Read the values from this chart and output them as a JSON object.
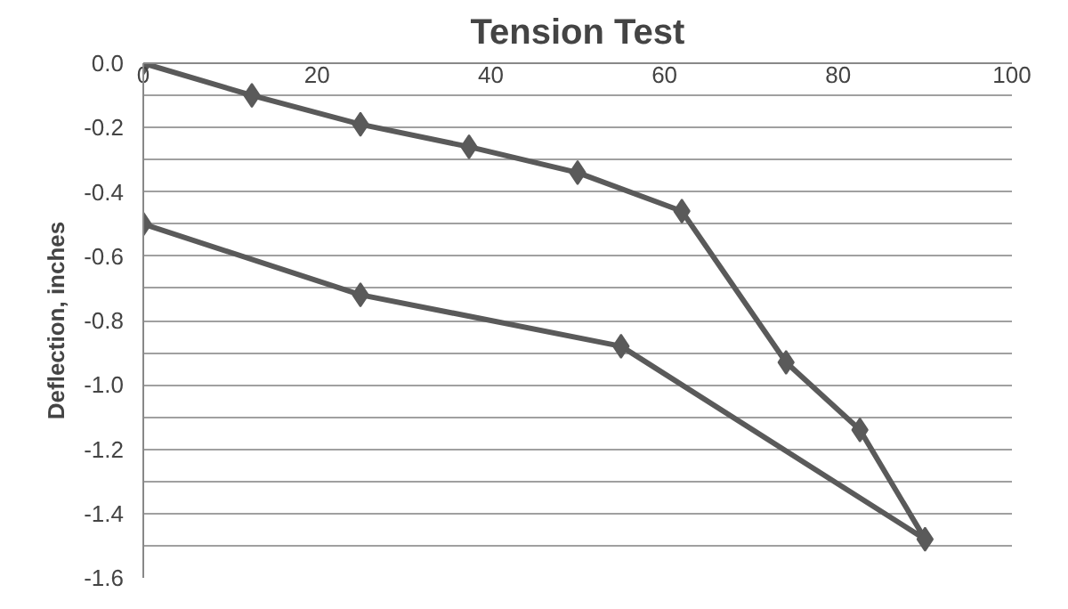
{
  "chart_data": {
    "type": "line",
    "title": "Tension Test",
    "ylabel": "Deflection, inches",
    "x": [
      0,
      12.5,
      25,
      37.5,
      50,
      62,
      74,
      82.5,
      90,
      55,
      25,
      0
    ],
    "series": [
      {
        "color": "#5a5a5a",
        "values": [
          0,
          -0.1,
          -0.19,
          -0.26,
          -0.34,
          -0.46,
          -0.93,
          -1.14,
          -1.48,
          -0.88,
          -0.72,
          -0.5
        ]
      }
    ],
    "xlim": [
      0,
      100
    ],
    "xticks": [
      0,
      20,
      40,
      60,
      80,
      100
    ],
    "ylim": [
      -1.6,
      0
    ],
    "yticks": [
      {
        "value": 0,
        "label": "0.0"
      },
      {
        "value": -0.1,
        "label": null
      },
      {
        "value": -0.2,
        "label": "-0.2"
      },
      {
        "value": -0.3,
        "label": null
      },
      {
        "value": -0.4,
        "label": "-0.4"
      },
      {
        "value": -0.5,
        "label": null
      },
      {
        "value": -0.6,
        "label": "-0.6"
      },
      {
        "value": -0.7,
        "label": null
      },
      {
        "value": -0.8,
        "label": "-0.8"
      },
      {
        "value": -0.9,
        "label": null
      },
      {
        "value": -1.0,
        "label": "-1.0"
      },
      {
        "value": -1.1,
        "label": null
      },
      {
        "value": -1.2,
        "label": "-1.2"
      },
      {
        "value": -1.3,
        "label": null
      },
      {
        "value": -1.4,
        "label": "-1.4"
      },
      {
        "value": -1.5,
        "label": null
      },
      {
        "value": -1.6,
        "label": "-1.6"
      }
    ],
    "grid": "y",
    "marker": "diamond",
    "line_style": "solid"
  }
}
